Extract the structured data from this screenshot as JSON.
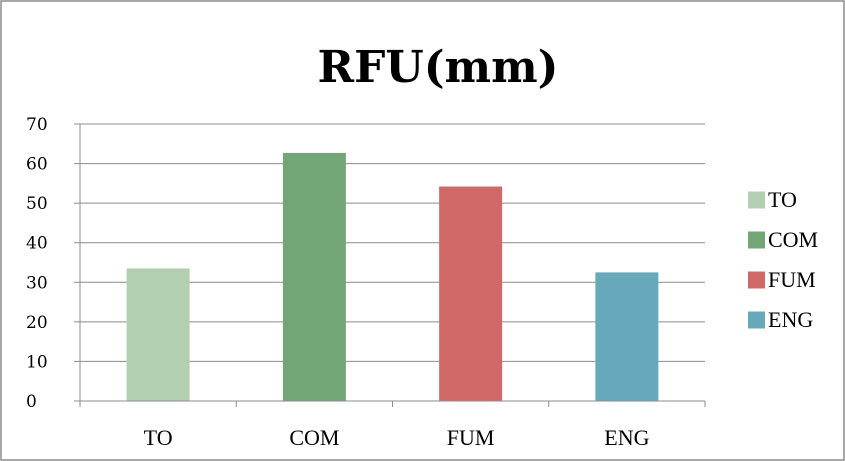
{
  "chart_data": {
    "type": "bar",
    "title": "RFU(mm)",
    "xlabel": "",
    "ylabel": "",
    "categories": [
      "TO",
      "COM",
      "FUM",
      "ENG"
    ],
    "values": [
      33.5,
      62.7,
      54.2,
      32.5
    ],
    "colors": [
      "#b2cfb2",
      "#73a677",
      "#d06868",
      "#67a8bb"
    ],
    "ylim": [
      0,
      70
    ],
    "yticks": [
      0,
      10,
      20,
      30,
      40,
      50,
      60,
      70
    ],
    "grid": true,
    "legend": {
      "placement": "right",
      "entries": [
        "TO",
        "COM",
        "FUM",
        "ENG"
      ]
    }
  }
}
